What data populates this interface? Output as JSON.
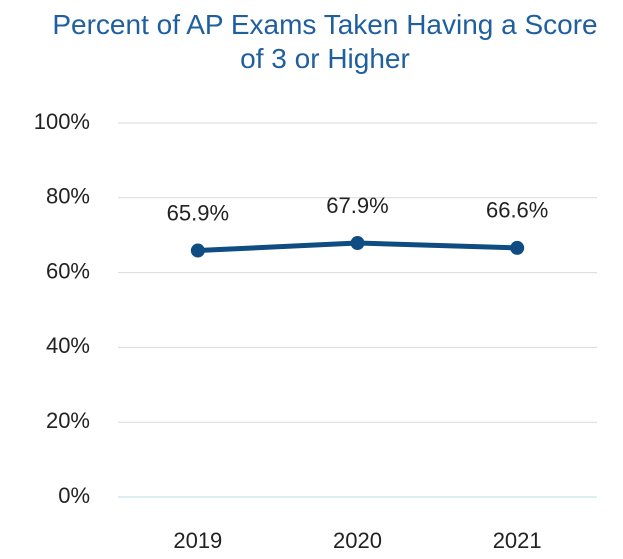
{
  "chart_data": {
    "type": "line",
    "title": "Percent of AP Exams Taken Having a Score of 3 or Higher",
    "categories": [
      "2019",
      "2020",
      "2021"
    ],
    "values": [
      65.9,
      67.9,
      66.6
    ],
    "value_labels": [
      "65.9%",
      "67.9%",
      "66.6%"
    ],
    "color": "#0f4c81",
    "ylim": [
      0,
      100
    ],
    "yticks": [
      {
        "value": 0,
        "label": "0%"
      },
      {
        "value": 20,
        "label": "20%"
      },
      {
        "value": 40,
        "label": "40%"
      },
      {
        "value": 60,
        "label": "60%"
      },
      {
        "value": 80,
        "label": "80%"
      },
      {
        "value": 100,
        "label": "100%"
      }
    ],
    "grid": true
  }
}
